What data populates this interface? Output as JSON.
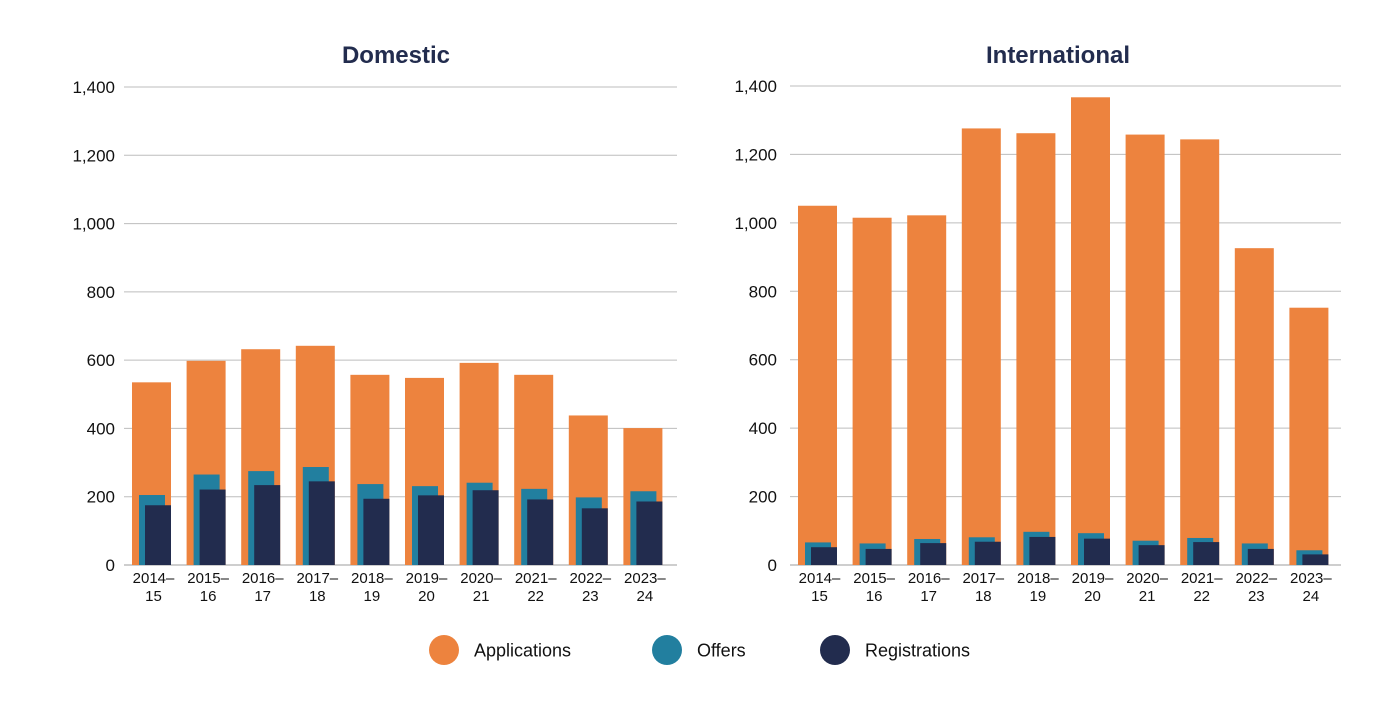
{
  "chart_data": [
    {
      "type": "bar",
      "title": "Domestic",
      "xlabel": "",
      "ylabel": "",
      "ylim": [
        0,
        1400
      ],
      "yticks": [
        0,
        200,
        400,
        600,
        800,
        1000,
        1200,
        1400
      ],
      "ytick_labels": [
        "0",
        "200",
        "400",
        "600",
        "800",
        "1,000",
        "1,200",
        "1,400"
      ],
      "grid": true,
      "categories": [
        [
          "2014–",
          "15"
        ],
        [
          "2015–",
          "16"
        ],
        [
          "2016–",
          "17"
        ],
        [
          "2017–",
          "18"
        ],
        [
          "2018–",
          "19"
        ],
        [
          "2019–",
          "20"
        ],
        [
          "2020–",
          "21"
        ],
        [
          "2021–",
          "22"
        ],
        [
          "2022–",
          "23"
        ],
        [
          "2023–",
          "24"
        ]
      ],
      "series": [
        {
          "name": "Applications",
          "values": [
            535,
            598,
            632,
            642,
            557,
            548,
            592,
            557,
            438,
            401
          ]
        },
        {
          "name": "Offers",
          "values": [
            205,
            265,
            275,
            287,
            237,
            231,
            241,
            223,
            198,
            216
          ]
        },
        {
          "name": "Registrations",
          "values": [
            175,
            221,
            234,
            245,
            194,
            204,
            219,
            192,
            166,
            186
          ]
        }
      ]
    },
    {
      "type": "bar",
      "title": "International",
      "xlabel": "",
      "ylabel": "",
      "ylim": [
        0,
        1400
      ],
      "yticks": [
        0,
        200,
        400,
        600,
        800,
        1000,
        1200,
        1400
      ],
      "ytick_labels": [
        "0",
        "200",
        "400",
        "600",
        "800",
        "1,000",
        "1,200",
        "1,400"
      ],
      "grid": true,
      "categories": [
        [
          "2014–",
          "15"
        ],
        [
          "2015–",
          "16"
        ],
        [
          "2016–",
          "17"
        ],
        [
          "2017–",
          "18"
        ],
        [
          "2018–",
          "19"
        ],
        [
          "2019–",
          "20"
        ],
        [
          "2020–",
          "21"
        ],
        [
          "2021–",
          "22"
        ],
        [
          "2022–",
          "23"
        ],
        [
          "2023–",
          "24"
        ]
      ],
      "series": [
        {
          "name": "Applications",
          "values": [
            1050,
            1015,
            1022,
            1276,
            1262,
            1367,
            1258,
            1244,
            926,
            752
          ]
        },
        {
          "name": "Offers",
          "values": [
            66,
            63,
            76,
            81,
            97,
            93,
            71,
            79,
            63,
            43
          ]
        },
        {
          "name": "Registrations",
          "values": [
            52,
            47,
            64,
            68,
            82,
            77,
            58,
            67,
            47,
            31
          ]
        }
      ]
    }
  ],
  "colors": {
    "Applications": "#ED833E",
    "Offers": "#227F9F",
    "Registrations": "#222C4E",
    "title": "#222C4E",
    "text": "#111111",
    "grid": "#BDBDBD"
  },
  "legend": {
    "position": "bottom-center",
    "items": [
      {
        "label": "Applications",
        "icon": "circle-swatch-icon"
      },
      {
        "label": "Offers",
        "icon": "circle-swatch-icon"
      },
      {
        "label": "Registrations",
        "icon": "circle-swatch-icon"
      }
    ]
  }
}
